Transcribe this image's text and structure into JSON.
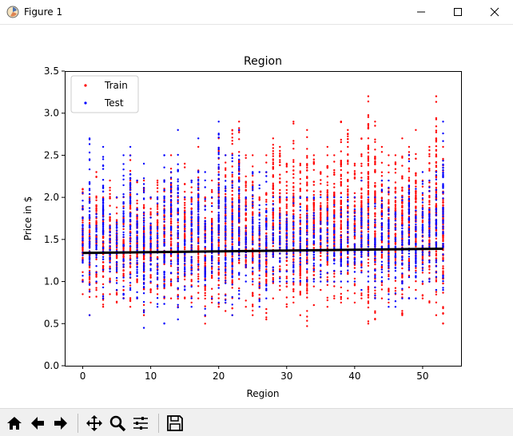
{
  "window": {
    "title": "Figure 1"
  },
  "toolbar": {
    "buttons": [
      "home-icon",
      "back-arrow-icon",
      "forward-arrow-icon",
      "pan-move-icon",
      "zoom-magnifier-icon",
      "configure-subplots-icon",
      "save-floppy-icon"
    ]
  },
  "colors": {
    "train": "#ff0000",
    "test": "#0000ff",
    "fit": "#000000"
  },
  "chart_data": {
    "type": "scatter",
    "title": "Region",
    "xlabel": "Region",
    "ylabel": "Price in $",
    "xlim": [
      -2.65,
      55.65
    ],
    "ylim": [
      0.0,
      3.5
    ],
    "xticks": [
      "0",
      "10",
      "20",
      "30",
      "40",
      "50"
    ],
    "yticks": [
      "0.0",
      "0.5",
      "1.0",
      "1.5",
      "2.0",
      "2.5",
      "3.0",
      "3.5"
    ],
    "legend_position": "top-left",
    "grid": false,
    "series": [
      {
        "name": "Train",
        "points_per_region": "vertical strips of points at each integer region 0-53",
        "region_min": [
          0.85,
          0.6,
          0.82,
          0.7,
          0.85,
          0.75,
          0.8,
          0.7,
          0.8,
          0.6,
          0.75,
          0.85,
          0.8,
          0.8,
          0.7,
          0.8,
          0.75,
          0.8,
          0.5,
          0.75,
          0.7,
          0.65,
          0.6,
          0.8,
          0.7,
          0.6,
          0.8,
          0.55,
          0.8,
          0.9,
          0.7,
          0.75,
          0.6,
          0.47,
          0.72,
          0.9,
          0.7,
          0.8,
          0.75,
          0.8,
          0.75,
          0.8,
          0.5,
          0.55,
          0.8,
          0.75,
          0.85,
          0.6,
          0.8,
          0.9,
          0.8,
          0.75,
          0.6,
          0.5
        ],
        "region_max": [
          2.1,
          2.0,
          2.3,
          2.0,
          2.2,
          2.0,
          2.0,
          2.5,
          2.2,
          2.2,
          2.0,
          2.2,
          2.2,
          2.5,
          2.0,
          2.4,
          2.2,
          2.6,
          2.0,
          2.2,
          2.7,
          2.5,
          2.8,
          2.9,
          2.5,
          2.5,
          2.0,
          2.5,
          2.7,
          2.6,
          2.4,
          2.9,
          2.4,
          2.8,
          2.5,
          2.3,
          2.6,
          2.5,
          2.9,
          2.8,
          2.4,
          2.7,
          3.2,
          2.9,
          2.6,
          2.5,
          2.5,
          2.7,
          2.6,
          2.8,
          2.2,
          2.6,
          3.2,
          2.6
        ]
      },
      {
        "name": "Test",
        "points_per_region": "vertical strips of points at each integer region 0-53",
        "region_min": [
          1.0,
          0.6,
          1.0,
          0.8,
          1.0,
          0.9,
          0.8,
          0.9,
          0.8,
          0.45,
          1.0,
          0.7,
          0.5,
          1.0,
          0.55,
          0.9,
          0.7,
          1.0,
          0.6,
          0.8,
          0.75,
          0.75,
          0.6,
          0.8,
          1.0,
          1.0,
          0.7,
          0.8,
          1.0,
          1.0,
          1.0,
          1.0,
          1.0,
          1.0,
          1.0,
          1.0,
          1.0,
          1.0,
          1.0,
          1.0,
          1.0,
          0.9,
          1.0,
          0.8,
          1.0,
          0.7,
          0.7,
          0.8,
          0.8,
          0.8,
          1.0,
          1.0,
          0.9,
          0.9
        ],
        "region_max": [
          2.05,
          2.7,
          1.8,
          2.6,
          1.8,
          2.0,
          2.5,
          2.6,
          2.2,
          2.4,
          2.0,
          2.0,
          2.5,
          2.3,
          2.8,
          2.0,
          2.2,
          2.7,
          2.3,
          2.0,
          2.9,
          2.5,
          2.5,
          2.8,
          2.0,
          2.3,
          2.3,
          2.3,
          2.0,
          2.0,
          2.0,
          2.0,
          2.0,
          2.0,
          2.0,
          2.0,
          2.0,
          2.0,
          2.0,
          2.0,
          2.0,
          2.2,
          2.0,
          2.0,
          2.2,
          2.2,
          2.0,
          2.0,
          2.5,
          2.1,
          2.3,
          2.2,
          2.3,
          2.9
        ]
      },
      {
        "name": "fit",
        "type": "line",
        "x": [
          0,
          53
        ],
        "y": [
          1.34,
          1.39
        ]
      }
    ]
  }
}
